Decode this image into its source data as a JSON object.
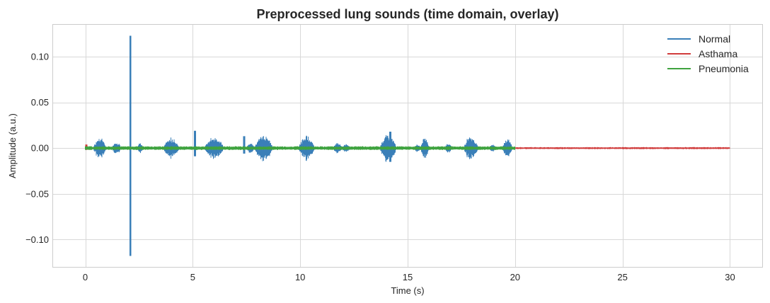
{
  "chart_data": {
    "type": "line",
    "title": "Preprocessed lung sounds (time domain, overlay)",
    "xlabel": "Time (s)",
    "ylabel": "Amplitude (a.u.)",
    "xlim": [
      -1.5,
      31.5
    ],
    "ylim": [
      -0.13,
      0.135
    ],
    "xticks": [
      0,
      5,
      10,
      15,
      20,
      25,
      30
    ],
    "xtick_labels": [
      "0",
      "5",
      "10",
      "15",
      "20",
      "25",
      "30"
    ],
    "yticks": [
      0.1,
      0.05,
      0.0,
      -0.05,
      -0.1
    ],
    "ytick_labels": [
      "0.10",
      "0.05",
      "0.00",
      "−0.05",
      "−0.10"
    ],
    "grid": true,
    "legend_position": "top-right",
    "series": [
      {
        "name": "Normal",
        "color": "#3a7fb8",
        "duration_s": 20.0,
        "noise_amplitude": 0.0015,
        "bursts": [
          {
            "start": 0.35,
            "end": 1.0,
            "peak": 0.012
          },
          {
            "start": 1.2,
            "end": 1.7,
            "peak": 0.007
          },
          {
            "start": 2.4,
            "end": 2.7,
            "peak": 0.006
          },
          {
            "start": 3.6,
            "end": 4.4,
            "peak": 0.012
          },
          {
            "start": 5.5,
            "end": 6.5,
            "peak": 0.013
          },
          {
            "start": 7.5,
            "end": 7.9,
            "peak": 0.006
          },
          {
            "start": 7.95,
            "end": 8.25,
            "peak": 0.009
          },
          {
            "start": 7.9,
            "end": 8.5,
            "peak": 0.008
          },
          {
            "start": 8.0,
            "end": 8.7,
            "peak": 0.004
          },
          {
            "start": 7.9,
            "end": 8.6,
            "peak": 0.003
          },
          {
            "start": 7.9,
            "end": 8.6,
            "peak": 0.002
          },
          {
            "start": 7.95,
            "end": 8.65,
            "peak": 0.001
          },
          {
            "start": 7.9,
            "end": 8.7,
            "peak": 0.001
          },
          {
            "start": 7.85,
            "end": 8.75,
            "peak": 0.016
          },
          {
            "start": 9.9,
            "end": 10.7,
            "peak": 0.015
          },
          {
            "start": 11.5,
            "end": 12.0,
            "peak": 0.006
          },
          {
            "start": 11.9,
            "end": 12.4,
            "peak": 0.005
          },
          {
            "start": 13.7,
            "end": 14.5,
            "peak": 0.018
          },
          {
            "start": 15.3,
            "end": 15.6,
            "peak": 0.005
          },
          {
            "start": 15.6,
            "end": 16.0,
            "peak": 0.013
          },
          {
            "start": 16.7,
            "end": 17.1,
            "peak": 0.006
          },
          {
            "start": 17.6,
            "end": 18.3,
            "peak": 0.015
          },
          {
            "start": 18.8,
            "end": 19.1,
            "peak": 0.005
          },
          {
            "start": 19.4,
            "end": 19.9,
            "peak": 0.011
          }
        ],
        "spikes": [
          {
            "t": 2.1,
            "peak": 0.123,
            "trough": -0.118
          },
          {
            "t": 5.1,
            "peak": 0.019,
            "trough": -0.009
          },
          {
            "t": 7.4,
            "peak": 0.013,
            "trough": -0.006
          },
          {
            "t": 14.2,
            "peak": 0.018,
            "trough": -0.015
          }
        ]
      },
      {
        "name": "Asthama",
        "color": "#d03b3b",
        "duration_s": 30.0,
        "noise_amplitude": 0.0012,
        "bursts": [],
        "spikes": [
          {
            "t": 0.05,
            "peak": 0.004,
            "trough": -0.002
          }
        ]
      },
      {
        "name": "Pneumonia",
        "color": "#3fa33f",
        "duration_s": 20.0,
        "noise_amplitude": 0.0022,
        "bursts": [],
        "spikes": []
      }
    ]
  }
}
